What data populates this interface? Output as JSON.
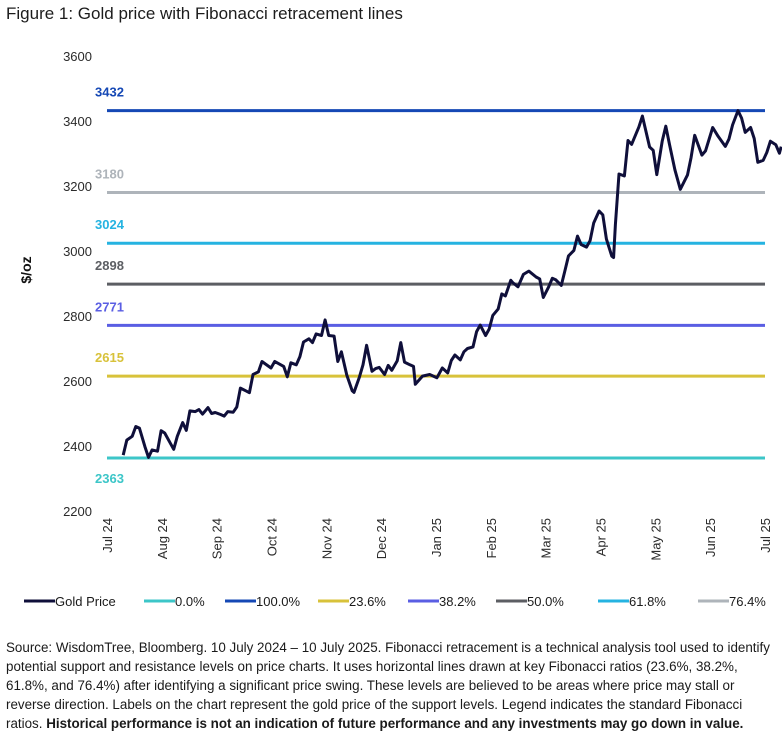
{
  "figure_title": "Figure 1: Gold price with Fibonacci retracement lines",
  "source_text": "Source: WisdomTree, Bloomberg. 10 July 2024 – 10 July 2025. Fibonacci retracement is a technical analysis tool used to identify potential support and resistance levels on price charts. It uses horizontal lines drawn at key Fibonacci ratios (23.6%, 38.2%, 61.8%, and 76.4%) after identifying a significant price swing. These levels are believed to be areas where price may stall or reverse direction.  Labels on the chart represent the gold price of the support levels. Legend indicates the standard Fibonacci ratios. ",
  "source_bold": "Historical performance is not an indication of future performance and any investments may go down in value.",
  "chart_data": {
    "type": "line",
    "title": "Figure 1: Gold price with Fibonacci retracement lines",
    "ylabel": "$/oz",
    "xlabel": "",
    "ylim": [
      2200,
      3600
    ],
    "yticks": [
      2200,
      2400,
      2600,
      2800,
      3000,
      3200,
      3400,
      3600
    ],
    "xlim": [
      "2024-07-01",
      "2025-07-01"
    ],
    "xticks": [
      "Jul 24",
      "Aug 24",
      "Sep 24",
      "Oct 24",
      "Nov 24",
      "Dec 24",
      "Jan 25",
      "Feb 25",
      "Mar 25",
      "Apr 25",
      "May 25",
      "Jun 25",
      "Jul 25"
    ],
    "grid": false,
    "legend_position": "bottom",
    "series": [
      {
        "name": "Gold Price",
        "color": "#0f0f3a",
        "x": [
          "2024-07-10",
          "2024-07-12",
          "2024-07-15",
          "2024-07-17",
          "2024-07-19",
          "2024-07-22",
          "2024-07-24",
          "2024-07-26",
          "2024-07-29",
          "2024-07-31",
          "2024-08-02",
          "2024-08-05",
          "2024-08-07",
          "2024-08-09",
          "2024-08-12",
          "2024-08-14",
          "2024-08-16",
          "2024-08-19",
          "2024-08-21",
          "2024-08-23",
          "2024-08-26",
          "2024-08-28",
          "2024-08-30",
          "2024-09-02",
          "2024-09-04",
          "2024-09-06",
          "2024-09-09",
          "2024-09-11",
          "2024-09-13",
          "2024-09-16",
          "2024-09-18",
          "2024-09-20",
          "2024-09-23",
          "2024-09-25",
          "2024-09-27",
          "2024-09-30",
          "2024-10-02",
          "2024-10-04",
          "2024-10-07",
          "2024-10-09",
          "2024-10-11",
          "2024-10-14",
          "2024-10-16",
          "2024-10-18",
          "2024-10-21",
          "2024-10-23",
          "2024-10-25",
          "2024-10-28",
          "2024-10-30",
          "2024-11-01",
          "2024-11-04",
          "2024-11-06",
          "2024-11-08",
          "2024-11-11",
          "2024-11-14",
          "2024-11-15",
          "2024-11-18",
          "2024-11-20",
          "2024-11-22",
          "2024-11-25",
          "2024-11-27",
          "2024-11-29",
          "2024-12-02",
          "2024-12-04",
          "2024-12-06",
          "2024-12-09",
          "2024-12-11",
          "2024-12-13",
          "2024-12-16",
          "2024-12-18",
          "2024-12-19",
          "2024-12-23",
          "2024-12-27",
          "2024-12-31",
          "2025-01-03",
          "2025-01-06",
          "2025-01-08",
          "2025-01-10",
          "2025-01-13",
          "2025-01-15",
          "2025-01-17",
          "2025-01-20",
          "2025-01-22",
          "2025-01-24",
          "2025-01-27",
          "2025-01-29",
          "2025-01-31",
          "2025-02-03",
          "2025-02-05",
          "2025-02-07",
          "2025-02-10",
          "2025-02-11",
          "2025-02-14",
          "2025-02-17",
          "2025-02-20",
          "2025-02-24",
          "2025-02-26",
          "2025-02-28",
          "2025-03-03",
          "2025-03-05",
          "2025-03-07",
          "2025-03-10",
          "2025-03-12",
          "2025-03-14",
          "2025-03-17",
          "2025-03-19",
          "2025-03-21",
          "2025-03-24",
          "2025-03-26",
          "2025-03-28",
          "2025-03-31",
          "2025-04-02",
          "2025-04-04",
          "2025-04-07",
          "2025-04-08",
          "2025-04-09",
          "2025-04-11",
          "2025-04-14",
          "2025-04-16",
          "2025-04-18",
          "2025-04-22",
          "2025-04-24",
          "2025-04-28",
          "2025-04-30",
          "2025-05-02",
          "2025-05-05",
          "2025-05-07",
          "2025-05-09",
          "2025-05-12",
          "2025-05-15",
          "2025-05-19",
          "2025-05-21",
          "2025-05-23",
          "2025-05-27",
          "2025-05-29",
          "2025-06-02",
          "2025-06-05",
          "2025-06-09",
          "2025-06-11",
          "2025-06-13",
          "2025-06-16",
          "2025-06-18",
          "2025-06-20",
          "2025-06-23",
          "2025-06-25",
          "2025-06-27",
          "2025-06-30",
          "2025-07-02",
          "2025-07-04",
          "2025-07-07",
          "2025-07-09",
          "2025-07-10"
        ],
        "y": [
          2372,
          2418,
          2430,
          2460,
          2455,
          2398,
          2365,
          2388,
          2384,
          2447,
          2440,
          2410,
          2390,
          2430,
          2472,
          2448,
          2508,
          2506,
          2512,
          2498,
          2518,
          2500,
          2503,
          2497,
          2492,
          2506,
          2504,
          2520,
          2578,
          2570,
          2564,
          2620,
          2628,
          2660,
          2652,
          2640,
          2660,
          2654,
          2645,
          2613,
          2656,
          2650,
          2675,
          2720,
          2730,
          2718,
          2745,
          2740,
          2788,
          2740,
          2738,
          2660,
          2690,
          2618,
          2570,
          2565,
          2612,
          2650,
          2710,
          2630,
          2638,
          2642,
          2620,
          2648,
          2633,
          2662,
          2718,
          2658,
          2650,
          2645,
          2590,
          2615,
          2620,
          2610,
          2640,
          2625,
          2663,
          2680,
          2665,
          2690,
          2700,
          2705,
          2752,
          2772,
          2740,
          2760,
          2802,
          2822,
          2868,
          2862,
          2910,
          2903,
          2890,
          2928,
          2938,
          2920,
          2914,
          2857,
          2890,
          2916,
          2911,
          2894,
          2939,
          2985,
          3002,
          3046,
          3020,
          3012,
          3032,
          3086,
          3123,
          3111,
          3037,
          2984,
          2980,
          3082,
          3237,
          3231,
          3340,
          3328,
          3381,
          3415,
          3320,
          3310,
          3235,
          3338,
          3384,
          3328,
          3250,
          3190,
          3234,
          3288,
          3356,
          3295,
          3308,
          3380,
          3353,
          3322,
          3344,
          3388,
          3432,
          3409,
          3365,
          3380,
          3346,
          3273,
          3279,
          3303,
          3338,
          3327,
          3301,
          3321
        ]
      }
    ],
    "reference_lines": [
      {
        "ratio": "0.0%",
        "value": 2363,
        "label": "2363",
        "color": "#3cc6c8"
      },
      {
        "ratio": "100.0%",
        "value": 3432,
        "label": "3432",
        "color": "#1548b5"
      },
      {
        "ratio": "23.6%",
        "value": 2615,
        "label": "2615",
        "color": "#d8c23a"
      },
      {
        "ratio": "38.2%",
        "value": 2771,
        "label": "2771",
        "color": "#5a5ee3"
      },
      {
        "ratio": "50.0%",
        "value": 2898,
        "label": "2898",
        "color": "#5c5e63"
      },
      {
        "ratio": "61.8%",
        "value": 3024,
        "label": "3024",
        "color": "#25b3e1"
      },
      {
        "ratio": "76.4%",
        "value": 3180,
        "label": "3180",
        "color": "#aeb4ba"
      }
    ],
    "legend": [
      {
        "label": "Gold Price",
        "color": "#0f0f3a"
      },
      {
        "label": "0.0%",
        "color": "#3cc6c8"
      },
      {
        "label": "100.0%",
        "color": "#1548b5"
      },
      {
        "label": "23.6%",
        "color": "#d8c23a"
      },
      {
        "label": "38.2%",
        "color": "#5a5ee3"
      },
      {
        "label": "50.0%",
        "color": "#5c5e63"
      },
      {
        "label": "61.8%",
        "color": "#25b3e1"
      },
      {
        "label": "76.4%",
        "color": "#aeb4ba"
      }
    ]
  }
}
